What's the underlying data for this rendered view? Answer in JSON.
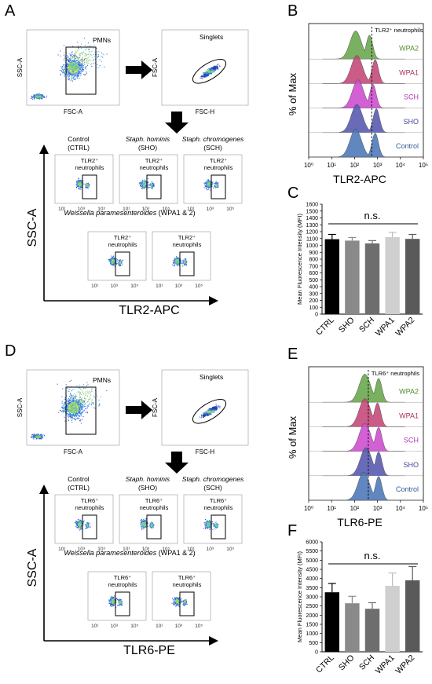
{
  "panels": {
    "A": {
      "letter": "A",
      "gate_pmn": "PMNs",
      "gate_singlets": "Singlets",
      "plot1_xlabel": "FSC-A",
      "plot1_ylabel": "SSC-A",
      "plot2_xlabel": "FSC-H",
      "plot2_ylabel": "FSC-A",
      "groups": [
        {
          "line1": "Control",
          "line2": "(CTRL)",
          "italic": false
        },
        {
          "line1": "Staph. hominis",
          "line2": "(SHO)",
          "italic": true
        },
        {
          "line1": "Staph. chromogenes",
          "line2": "(SCH)",
          "italic": true
        }
      ],
      "weissella_italic": "Weissella paramesenteroides",
      "weissella_rest": " (WPA1 & 2)",
      "gate_line1": "TLR2⁺",
      "gate_line2": "neutrophils",
      "tick_labels": [
        "10¹",
        "10³",
        "10⁵"
      ],
      "big_ylabel": "SSC-A",
      "big_xlabel": "TLR2-APC"
    },
    "B": {
      "letter": "B",
      "annotation": "TLR2⁺ neutrophils",
      "ylabel": "% of Max",
      "xlabel": "TLR2-APC",
      "x_ticks": [
        "10⁰",
        "10¹",
        "10²",
        "10³",
        "10⁴",
        "10⁵"
      ],
      "samples": [
        {
          "name": "WPA2",
          "color": "#6aa84f",
          "label_color": "#4f8f2f",
          "mode_log": 2.05,
          "second_log": 2.65
        },
        {
          "name": "WPA1",
          "color": "#c44a7a",
          "label_color": "#a8325f",
          "mode_log": 2.1,
          "second_log": 2.9
        },
        {
          "name": "SCH",
          "color": "#cf4fd0",
          "label_color": "#b535b5",
          "mode_log": 2.15,
          "second_log": 2.8
        },
        {
          "name": "SHO",
          "color": "#5a5bb0",
          "label_color": "#41429a",
          "mode_log": 2.1,
          "second_log": 2.95
        },
        {
          "name": "Control",
          "color": "#4f7ab8",
          "label_color": "#2f5a96",
          "mode_log": 2.05,
          "second_log": 2.9
        }
      ]
    },
    "C": {
      "letter": "C",
      "ylabel": "Mean Fluorescence Intensity (MFI)",
      "significance": "n.s."
    },
    "D": {
      "letter": "D",
      "gate_pmn": "PMNs",
      "gate_singlets": "Singlets",
      "plot1_xlabel": "FSC-A",
      "plot1_ylabel": "SSC-A",
      "plot2_xlabel": "FSC-H",
      "plot2_ylabel": "FSC-A",
      "groups": [
        {
          "line1": "Control",
          "line2": "(CTRL)",
          "italic": false
        },
        {
          "line1": "Staph. hominis",
          "line2": "(SHO)",
          "italic": true
        },
        {
          "line1": "Staph. chromogenes",
          "line2": "(SCH)",
          "italic": true
        }
      ],
      "weissella_italic": "Weissella paramesenteroides",
      "weissella_rest": " (WPA1 & 2)",
      "gate_line1": "TLR6⁺",
      "gate_line2": "neutrophils",
      "tick_labels": [
        "10¹",
        "10³",
        "10⁵"
      ],
      "big_ylabel": "SSC-A",
      "big_xlabel": "TLR6-PE"
    },
    "E": {
      "letter": "E",
      "annotation": "TLR6⁺ neutrophils",
      "ylabel": "% of Max",
      "xlabel": "TLR6-PE",
      "x_ticks": [
        "10⁰",
        "10¹",
        "10²",
        "10³",
        "10⁴",
        "10⁵"
      ],
      "samples": [
        {
          "name": "WPA2",
          "color": "#6aa84f",
          "label_color": "#4f8f2f",
          "mode_log": 2.45,
          "second_log": 3.05
        },
        {
          "name": "WPA1",
          "color": "#c44a7a",
          "label_color": "#a8325f",
          "mode_log": 2.45,
          "second_log": 3.0
        },
        {
          "name": "SCH",
          "color": "#cf4fd0",
          "label_color": "#b535b5",
          "mode_log": 2.45,
          "second_log": 3.05
        },
        {
          "name": "SHO",
          "color": "#5a5bb0",
          "label_color": "#41429a",
          "mode_log": 2.5,
          "second_log": 3.05
        },
        {
          "name": "Control",
          "color": "#4f7ab8",
          "label_color": "#2f5a96",
          "mode_log": 2.4,
          "second_log": 3.05
        }
      ]
    },
    "F": {
      "letter": "F",
      "ylabel": "Mean Fluorescence Intensity (MFI)",
      "significance": "n.s."
    }
  },
  "chart_data": [
    {
      "id": "C",
      "type": "bar",
      "categories": [
        "CTRL",
        "SHO",
        "SCH",
        "WPA1",
        "WPA2"
      ],
      "values": [
        1090,
        1070,
        1030,
        1120,
        1095
      ],
      "errors": [
        70,
        45,
        40,
        70,
        65
      ],
      "colors": [
        "#000000",
        "#8a8a8a",
        "#6e6e6e",
        "#cfcfcf",
        "#5a5a5a"
      ],
      "ylabel": "Mean Fluorescence Intensity (MFI)",
      "ylim": [
        0,
        1600
      ],
      "yticks": [
        0,
        100,
        200,
        300,
        400,
        500,
        600,
        700,
        800,
        900,
        1000,
        1100,
        1200,
        1300,
        1400,
        1500,
        1600
      ],
      "significance": "n.s."
    },
    {
      "id": "F",
      "type": "bar",
      "categories": [
        "CTRL",
        "SHO",
        "SCH",
        "WPA1",
        "WPA2"
      ],
      "values": [
        3250,
        2650,
        2350,
        3600,
        3900
      ],
      "errors": [
        480,
        380,
        330,
        700,
        750
      ],
      "colors": [
        "#000000",
        "#8a8a8a",
        "#6e6e6e",
        "#cfcfcf",
        "#5a5a5a"
      ],
      "ylabel": "Mean Fluorescence Intensity (MFI)",
      "ylim": [
        0,
        6000
      ],
      "yticks": [
        0,
        500,
        1000,
        1500,
        2000,
        2500,
        3000,
        3500,
        4000,
        4500,
        5000,
        5500,
        6000
      ],
      "significance": "n.s."
    },
    {
      "id": "B",
      "type": "area",
      "x_scale": "log",
      "x_range": [
        1,
        100000
      ],
      "series": [
        {
          "name": "WPA2",
          "mode": 112,
          "second_peak": 450
        },
        {
          "name": "WPA1",
          "mode": 126,
          "second_peak": 795
        },
        {
          "name": "SCH",
          "mode": 141,
          "second_peak": 631
        },
        {
          "name": "SHO",
          "mode": 126,
          "second_peak": 891
        },
        {
          "name": "Control",
          "mode": 112,
          "second_peak": 795
        }
      ]
    },
    {
      "id": "E",
      "type": "area",
      "x_scale": "log",
      "x_range": [
        1,
        100000
      ],
      "series": [
        {
          "name": "WPA2",
          "mode": 282,
          "second_peak": 1122
        },
        {
          "name": "WPA1",
          "mode": 282,
          "second_peak": 1000
        },
        {
          "name": "SCH",
          "mode": 282,
          "second_peak": 1122
        },
        {
          "name": "SHO",
          "mode": 316,
          "second_peak": 1122
        },
        {
          "name": "Control",
          "mode": 251,
          "second_peak": 1122
        }
      ]
    }
  ]
}
